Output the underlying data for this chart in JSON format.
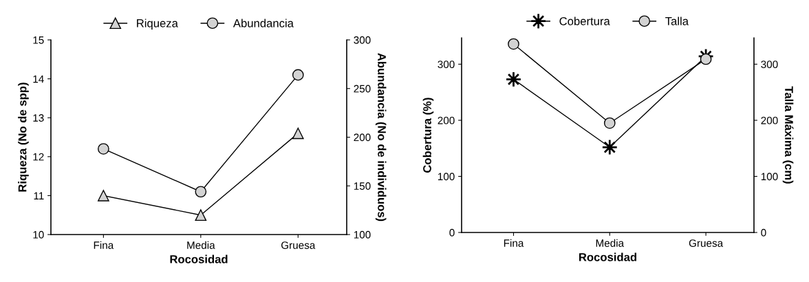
{
  "chart_data": [
    {
      "type": "line",
      "categories": [
        "Fina",
        "Media",
        "Gruesa"
      ],
      "xlabel": "Rocosidad",
      "ylabel": "Riqueza (No de spp)",
      "y2label": "Abundancia (No de individuos)",
      "ylim": [
        10,
        15
      ],
      "yticks": [
        10,
        11,
        12,
        13,
        14,
        15
      ],
      "y2lim": [
        100,
        300
      ],
      "y2ticks": [
        100,
        150,
        200,
        250,
        300
      ],
      "legend": "top",
      "grid": false,
      "series": [
        {
          "name": "Riqueza",
          "color": "#d3d3d3",
          "marker": "triangle",
          "values": [
            11.0,
            10.5,
            12.6
          ]
        },
        {
          "name": "Abundancia",
          "color": "#d3d3d3",
          "marker": "circle",
          "axis": "y2",
          "values": [
            188,
            144,
            264
          ]
        }
      ]
    },
    {
      "type": "line",
      "categories": [
        "Fina",
        "Media",
        "Gruesa"
      ],
      "xlabel": "Rocosidad",
      "ylabel": "Cobertura (%)",
      "y2label": "Talla Máxima (cm)",
      "ylim": [
        0,
        347
      ],
      "yticks": [
        0,
        100,
        200,
        300
      ],
      "y2lim": [
        0,
        347
      ],
      "y2ticks": [
        0,
        100,
        200,
        300
      ],
      "legend": "top",
      "grid": false,
      "series": [
        {
          "name": "Cobertura",
          "color": "#000000",
          "marker": "star",
          "values": [
            273,
            152,
            314
          ]
        },
        {
          "name": "Talla",
          "color": "#d3d3d3",
          "marker": "circle",
          "axis": "y2",
          "values": [
            336,
            195,
            309
          ]
        }
      ]
    }
  ]
}
